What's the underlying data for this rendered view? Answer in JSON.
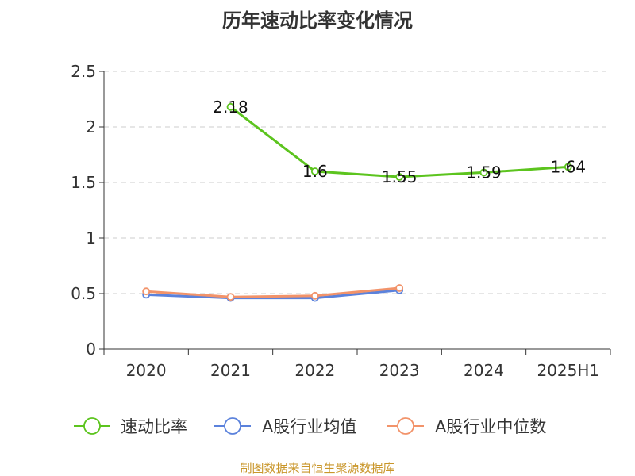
{
  "chart_data": {
    "type": "line",
    "title": "历年速动比率变化情况",
    "categories": [
      "2020",
      "2021",
      "2022",
      "2023",
      "2024",
      "2025H1"
    ],
    "ylim": [
      0,
      2.5
    ],
    "yticks": [
      0,
      0.5,
      1,
      1.5,
      2,
      2.5
    ],
    "ytick_labels": [
      "0",
      "0.5",
      "1",
      "1.5",
      "2",
      "2.5"
    ],
    "grid": true,
    "legend_position": "bottom",
    "series": [
      {
        "name": "速动比率",
        "color": "#5cc41e",
        "values": [
          null,
          2.18,
          1.6,
          1.55,
          1.59,
          1.64
        ],
        "labels": [
          "",
          "2.18",
          "1.6",
          "1.55",
          "1.59",
          "1.64"
        ],
        "show_labels": true
      },
      {
        "name": "A股行业均值",
        "color": "#5b82dc",
        "values": [
          0.49,
          0.46,
          0.46,
          0.53,
          null,
          null
        ],
        "show_labels": false
      },
      {
        "name": "A股行业中位数",
        "color": "#f2936a",
        "values": [
          0.52,
          0.47,
          0.48,
          0.55,
          null,
          null
        ],
        "show_labels": false
      }
    ]
  },
  "source_note": "制图数据来自恒生聚源数据库"
}
